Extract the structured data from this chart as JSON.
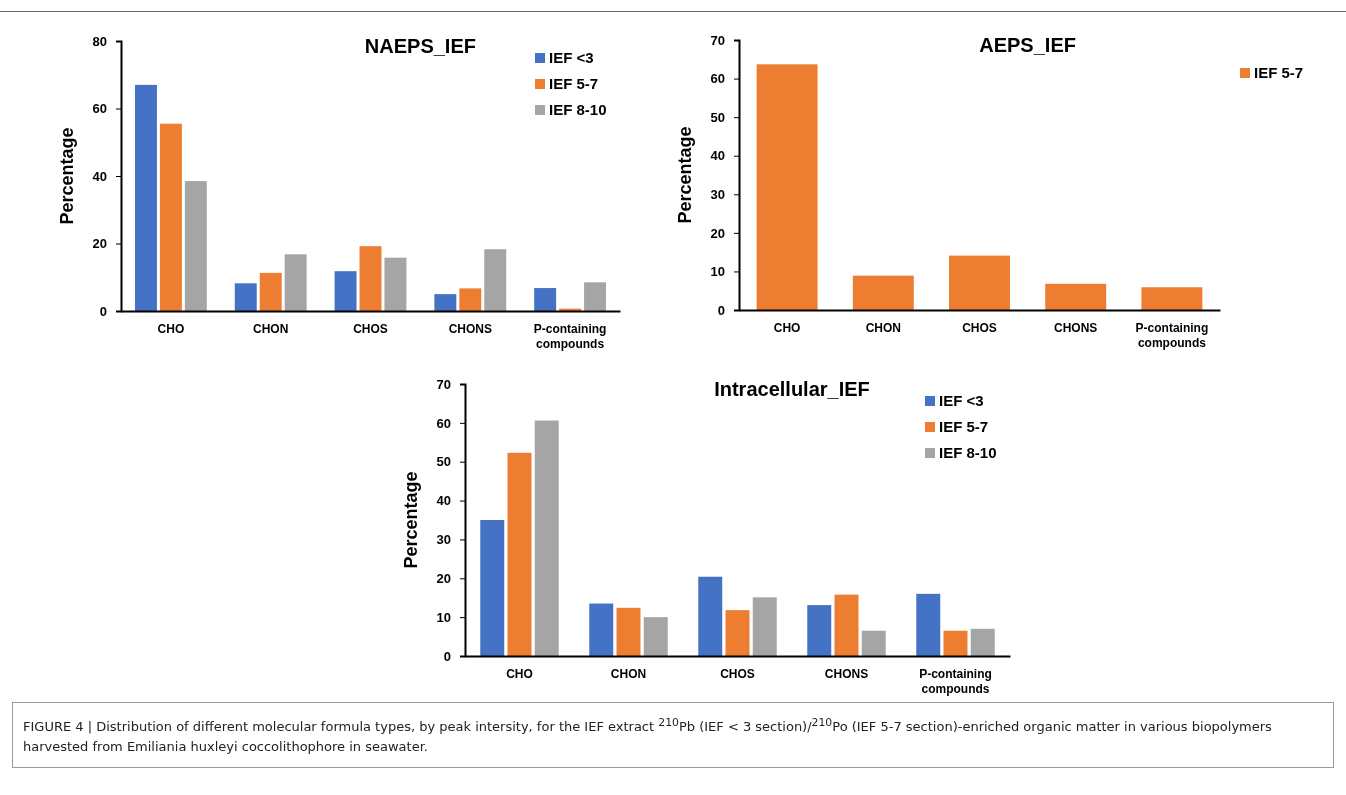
{
  "chart_data": [
    {
      "type": "bar",
      "title": "NAEPS_IEF",
      "ylabel": "Percentage",
      "categories": [
        "CHO",
        "CHON",
        "CHOS",
        "CHONS",
        "P-containing compounds"
      ],
      "series": [
        {
          "name": "IEF <3",
          "color": "#4472c4",
          "values": [
            67,
            8.2,
            11.8,
            5,
            6.8
          ]
        },
        {
          "name": "IEF 5-7",
          "color": "#ed7d31",
          "values": [
            55.5,
            11.3,
            19.2,
            6.7,
            0.7
          ]
        },
        {
          "name": "IEF 8-10",
          "color": "#a5a5a5",
          "values": [
            38.5,
            16.8,
            15.8,
            18.3,
            8.5
          ]
        }
      ],
      "ylim": [
        0,
        80
      ],
      "yticks": [
        0,
        20,
        40,
        60,
        80
      ],
      "grid": false,
      "legend": "top right"
    },
    {
      "type": "bar",
      "title": "AEPS_IEF",
      "ylabel": "Percentage",
      "categories": [
        "CHO",
        "CHON",
        "CHOS",
        "CHONS",
        "P-containing compounds"
      ],
      "series": [
        {
          "name": "IEF 5-7",
          "color": "#ed7d31",
          "values": [
            63.7,
            8.9,
            14.1,
            6.8,
            5.9
          ]
        }
      ],
      "ylim": [
        0,
        70
      ],
      "yticks": [
        0,
        10,
        20,
        30,
        40,
        50,
        60,
        70
      ],
      "grid": false,
      "legend": "top right"
    },
    {
      "type": "bar",
      "title": "Intracellular_IEF",
      "ylabel": "Percentage",
      "categories": [
        "CHO",
        "CHON",
        "CHOS",
        "CHONS",
        "P-containing compounds"
      ],
      "series": [
        {
          "name": "IEF <3",
          "color": "#4472c4",
          "values": [
            35,
            13.5,
            20.4,
            13.1,
            16
          ]
        },
        {
          "name": "IEF 5-7",
          "color": "#ed7d31",
          "values": [
            52.3,
            12.4,
            11.8,
            15.8,
            6.5
          ]
        },
        {
          "name": "IEF 8-10",
          "color": "#a5a5a5",
          "values": [
            60.6,
            10,
            15.1,
            6.5,
            7
          ]
        }
      ],
      "ylim": [
        0,
        70
      ],
      "yticks": [
        0,
        10,
        20,
        30,
        40,
        50,
        60,
        70
      ],
      "grid": false,
      "legend": "top right",
      "annotations": [
        "FIGURE 4 | Distribution of different molecular formula types, by peak intersity, for the IEF extract $^{210}$Pb (IEF < 3 section)/$^{210}$Po (IEF 5-7 section)-enriched organic matter in various biopolymers harvested from Emiliania huxleyi coccolithophore in seawater."
      ]
    }
  ]
}
